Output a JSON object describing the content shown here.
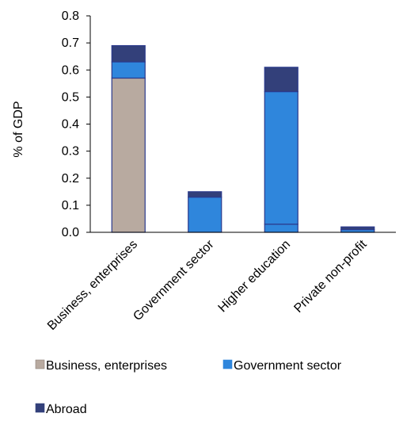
{
  "chart_data": {
    "type": "bar",
    "stacked": true,
    "categories": [
      "Business, enterprises",
      "Government sector",
      "Higher education",
      "Private non-profit"
    ],
    "series": [
      {
        "name": "Business, enterprises",
        "values": [
          0.57,
          0.0,
          0.0,
          0.0
        ],
        "color": "#b8aaa0"
      },
      {
        "name": "Government sector",
        "values": [
          0.06,
          0.13,
          0.03,
          0.0
        ],
        "color": "#2f86dc"
      },
      {
        "name": "Higher education",
        "values": [
          0.0,
          0.0,
          0.49,
          0.01
        ],
        "color": "#2f86dc"
      },
      {
        "name": "Abroad",
        "values": [
          0.06,
          0.02,
          0.09,
          0.01
        ],
        "color": "#33407a"
      }
    ],
    "legend_entries": [
      {
        "name": "Business, enterprises",
        "color": "#b8aaa0"
      },
      {
        "name": "Government sector",
        "color": "#2f86dc"
      },
      {
        "name": "Abroad",
        "color": "#33407a"
      }
    ],
    "ylabel": "% of GDP",
    "ylim": [
      0,
      0.8
    ],
    "yticks": [
      "0.0",
      "0.1",
      "0.2",
      "0.3",
      "0.4",
      "0.5",
      "0.6",
      "0.7",
      "0.8"
    ],
    "grid": false,
    "legend_position": "bottom",
    "bar_outline_color": "#2b3a8c"
  }
}
